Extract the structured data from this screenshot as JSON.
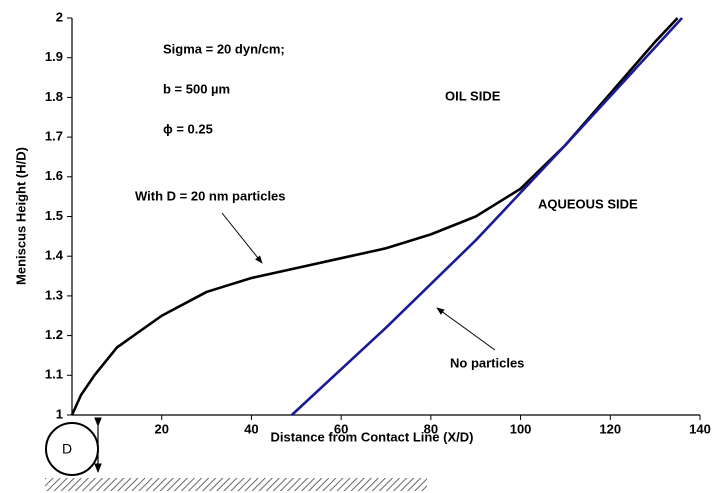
{
  "chart_data": {
    "type": "line",
    "x_label": "Distance from Contact Line (X/D)",
    "y_label": "Meniscus Height (H/D)",
    "annotations": [
      "Sigma = 20 dyn/cm;",
      "b = 500 µm",
      "ϕ = 0.25",
      "OIL SIDE",
      "AQUEOUS SIDE"
    ],
    "diagram_label": "D",
    "series": [
      {
        "name": "With D = 20 nm particles",
        "color": "#000000",
        "x": [
          0,
          2,
          5,
          10,
          20,
          30,
          40,
          50,
          60,
          70,
          80,
          90,
          100,
          110,
          120,
          130,
          135
        ],
        "values": [
          1,
          1.05,
          1.1,
          1.17,
          1.25,
          1.31,
          1.345,
          1.37,
          1.395,
          1.42,
          1.455,
          1.5,
          1.57,
          1.68,
          1.81,
          1.94,
          2
        ]
      },
      {
        "name": "No particles",
        "color": "#1a1a99",
        "x": [
          49,
          70,
          90,
          110,
          136
        ],
        "values": [
          1,
          1.22,
          1.44,
          1.68,
          2
        ]
      }
    ],
    "xlim": [
      0,
      140
    ],
    "ylim": [
      1,
      2
    ],
    "xticks": [
      20,
      40,
      60,
      80,
      100,
      120,
      140
    ],
    "yticks": [
      1,
      1.1,
      1.2,
      1.3,
      1.4,
      1.5,
      1.6,
      1.7,
      1.8,
      1.9,
      2
    ]
  }
}
